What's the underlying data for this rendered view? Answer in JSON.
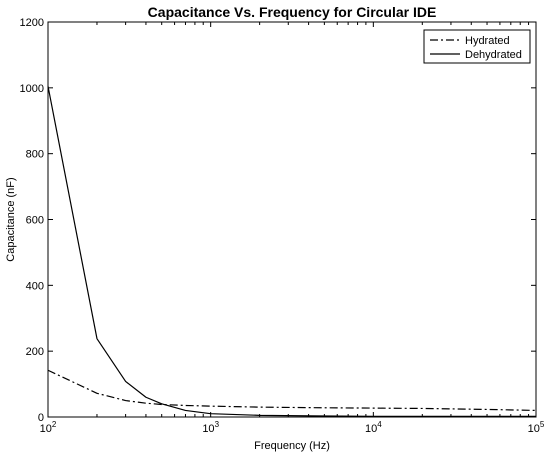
{
  "chart_data": {
    "type": "line",
    "title": "Capacitance Vs. Frequency for Circular IDE",
    "xlabel": "Frequency (Hz)",
    "ylabel": "Capacitance (nF)",
    "xscale": "log",
    "xlim": [
      100,
      100000
    ],
    "ylim": [
      0,
      1200
    ],
    "xticks": [
      {
        "base": "10",
        "exp": "2",
        "value": 100
      },
      {
        "base": "10",
        "exp": "3",
        "value": 1000
      },
      {
        "base": "10",
        "exp": "4",
        "value": 10000
      },
      {
        "base": "10",
        "exp": "5",
        "value": 100000
      }
    ],
    "yticks": [
      "0",
      "200",
      "400",
      "600",
      "800",
      "1000",
      "1200"
    ],
    "grid": false,
    "legend_position": "top-right",
    "series": [
      {
        "name": "Hydrated",
        "style": "dash-dot",
        "color": "#000000",
        "x": [
          100,
          200,
          300,
          400,
          500,
          700,
          1000,
          2000,
          5000,
          10000,
          20000,
          50000,
          100000
        ],
        "y": [
          142,
          72,
          50,
          42,
          38,
          35,
          33,
          30,
          28,
          27,
          26,
          23,
          20
        ]
      },
      {
        "name": "Dehydrated",
        "style": "solid",
        "color": "#000000",
        "x": [
          100,
          200,
          300,
          400,
          500,
          700,
          1000,
          2000,
          5000,
          10000,
          100000
        ],
        "y": [
          1005,
          238,
          108,
          60,
          40,
          20,
          10,
          5,
          3,
          2,
          2
        ]
      }
    ]
  }
}
